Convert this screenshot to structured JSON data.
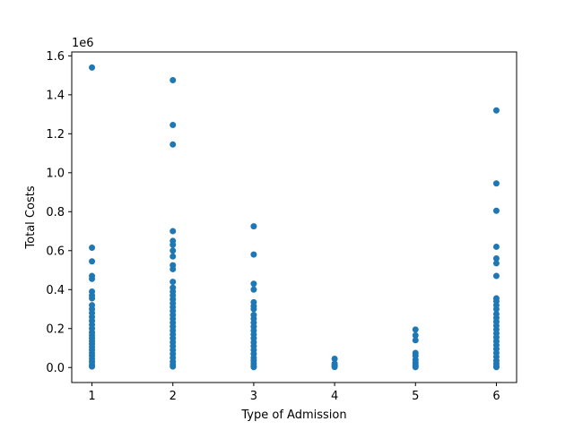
{
  "chart_data": {
    "type": "scatter",
    "title": "",
    "xlabel": "Type of Admission",
    "ylabel": "Total Costs",
    "y_offset_label": "1e6",
    "xlim": [
      0.75,
      6.25
    ],
    "ylim": [
      -0.077,
      1.62
    ],
    "x_ticks": [
      1,
      2,
      3,
      4,
      5,
      6
    ],
    "x_tick_labels": [
      "1",
      "2",
      "3",
      "4",
      "5",
      "6"
    ],
    "y_ticks": [
      0.0,
      0.2,
      0.4,
      0.6,
      0.8,
      1.0,
      1.2,
      1.4,
      1.6
    ],
    "y_tick_labels": [
      "0.0",
      "0.2",
      "0.4",
      "0.6",
      "0.8",
      "1.0",
      "1.2",
      "1.4",
      "1.6"
    ],
    "grid": false,
    "marker_color": "#1f77b4",
    "series": [
      {
        "points": [
          [
            1,
            1.54
          ],
          [
            1,
            0.615
          ],
          [
            1,
            0.545
          ],
          [
            1,
            0.47
          ],
          [
            1,
            0.455
          ],
          [
            1,
            0.39
          ],
          [
            1,
            0.37
          ],
          [
            1,
            0.355
          ],
          [
            1,
            0.32
          ],
          [
            1,
            0.3
          ],
          [
            1,
            0.28
          ],
          [
            1,
            0.26
          ],
          [
            1,
            0.24
          ],
          [
            1,
            0.22
          ],
          [
            1,
            0.2
          ],
          [
            1,
            0.18
          ],
          [
            1,
            0.165
          ],
          [
            1,
            0.15
          ],
          [
            1,
            0.135
          ],
          [
            1,
            0.12
          ],
          [
            1,
            0.105
          ],
          [
            1,
            0.09
          ],
          [
            1,
            0.075
          ],
          [
            1,
            0.06
          ],
          [
            1,
            0.045
          ],
          [
            1,
            0.03
          ],
          [
            1,
            0.015
          ],
          [
            1,
            0.005
          ],
          [
            2,
            1.475
          ],
          [
            2,
            1.245
          ],
          [
            2,
            1.145
          ],
          [
            2,
            0.7
          ],
          [
            2,
            0.65
          ],
          [
            2,
            0.63
          ],
          [
            2,
            0.6
          ],
          [
            2,
            0.57
          ],
          [
            2,
            0.525
          ],
          [
            2,
            0.505
          ],
          [
            2,
            0.44
          ],
          [
            2,
            0.41
          ],
          [
            2,
            0.39
          ],
          [
            2,
            0.37
          ],
          [
            2,
            0.35
          ],
          [
            2,
            0.33
          ],
          [
            2,
            0.31
          ],
          [
            2,
            0.29
          ],
          [
            2,
            0.27
          ],
          [
            2,
            0.25
          ],
          [
            2,
            0.23
          ],
          [
            2,
            0.21
          ],
          [
            2,
            0.19
          ],
          [
            2,
            0.17
          ],
          [
            2,
            0.15
          ],
          [
            2,
            0.13
          ],
          [
            2,
            0.11
          ],
          [
            2,
            0.09
          ],
          [
            2,
            0.07
          ],
          [
            2,
            0.05
          ],
          [
            2,
            0.03
          ],
          [
            2,
            0.015
          ],
          [
            2,
            0.005
          ],
          [
            3,
            0.725
          ],
          [
            3,
            0.58
          ],
          [
            3,
            0.43
          ],
          [
            3,
            0.4
          ],
          [
            3,
            0.335
          ],
          [
            3,
            0.315
          ],
          [
            3,
            0.3
          ],
          [
            3,
            0.27
          ],
          [
            3,
            0.25
          ],
          [
            3,
            0.23
          ],
          [
            3,
            0.21
          ],
          [
            3,
            0.19
          ],
          [
            3,
            0.17
          ],
          [
            3,
            0.15
          ],
          [
            3,
            0.13
          ],
          [
            3,
            0.11
          ],
          [
            3,
            0.09
          ],
          [
            3,
            0.07
          ],
          [
            3,
            0.05
          ],
          [
            3,
            0.035
          ],
          [
            3,
            0.02
          ],
          [
            3,
            0.008
          ],
          [
            3,
            0.002
          ],
          [
            4,
            0.045
          ],
          [
            4,
            0.02
          ],
          [
            4,
            0.01
          ],
          [
            4,
            0.003
          ],
          [
            5,
            0.195
          ],
          [
            5,
            0.165
          ],
          [
            5,
            0.14
          ],
          [
            5,
            0.075
          ],
          [
            5,
            0.06
          ],
          [
            5,
            0.04
          ],
          [
            5,
            0.025
          ],
          [
            5,
            0.015
          ],
          [
            5,
            0.008
          ],
          [
            5,
            0.002
          ],
          [
            6,
            1.32
          ],
          [
            6,
            0.945
          ],
          [
            6,
            0.805
          ],
          [
            6,
            0.62
          ],
          [
            6,
            0.56
          ],
          [
            6,
            0.535
          ],
          [
            6,
            0.47
          ],
          [
            6,
            0.355
          ],
          [
            6,
            0.34
          ],
          [
            6,
            0.32
          ],
          [
            6,
            0.3
          ],
          [
            6,
            0.275
          ],
          [
            6,
            0.255
          ],
          [
            6,
            0.235
          ],
          [
            6,
            0.215
          ],
          [
            6,
            0.195
          ],
          [
            6,
            0.175
          ],
          [
            6,
            0.155
          ],
          [
            6,
            0.135
          ],
          [
            6,
            0.115
          ],
          [
            6,
            0.095
          ],
          [
            6,
            0.075
          ],
          [
            6,
            0.055
          ],
          [
            6,
            0.035
          ],
          [
            6,
            0.02
          ],
          [
            6,
            0.008
          ],
          [
            6,
            0.002
          ]
        ]
      }
    ]
  }
}
